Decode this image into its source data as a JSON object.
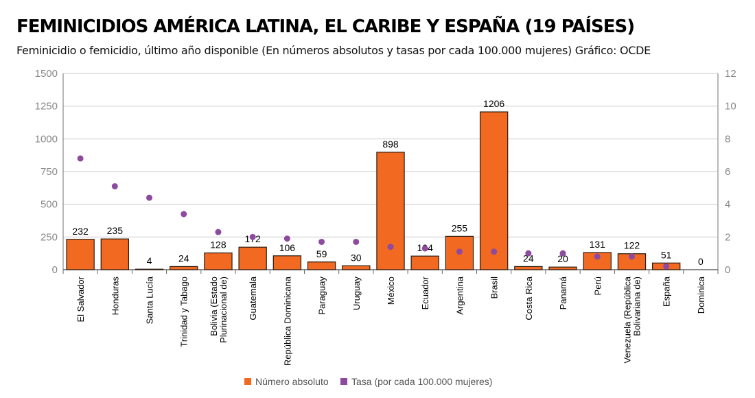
{
  "header": {
    "title": "FEMINICIDIOS AMÉRICA LATINA, EL CARIBE Y ESPAÑA (19 PAÍSES)",
    "subtitle": "Feminicidio o femicidio, último año disponible (En números absolutos y tasas por cada 100.000 mujeres) Gráfico: OCDE"
  },
  "chart_data": {
    "type": "bar",
    "title": "FEMINICIDIOS AMÉRICA LATINA, EL CARIBE Y ESPAÑA (19 PAÍSES)",
    "subtitle": "Feminicidio o femicidio, último año disponible (En números absolutos y tasas por cada 100.000 mujeres) Gráfico: OCDE",
    "categories": [
      [
        "El Salvador"
      ],
      [
        "Honduras"
      ],
      [
        "Santa Lucía"
      ],
      [
        "Trinidad y Tabago"
      ],
      [
        "Bolivia (Estado",
        "Plurinacional de)"
      ],
      [
        "Guatemala"
      ],
      [
        "República Dominicana"
      ],
      [
        "Paraguay"
      ],
      [
        "Uruguay"
      ],
      [
        "México"
      ],
      [
        "Ecuador"
      ],
      [
        "Argentina"
      ],
      [
        "Brasil"
      ],
      [
        "Costa Rica"
      ],
      [
        "Panamá"
      ],
      [
        "Perú"
      ],
      [
        "Venezuela (República",
        "Bolivariana de)"
      ],
      [
        "España"
      ],
      [
        "Dominica"
      ]
    ],
    "series": [
      {
        "name": "Número absoluto",
        "type": "bar",
        "axis": "left",
        "color": "#F26A21",
        "values": [
          232,
          235,
          4,
          24,
          128,
          172,
          106,
          59,
          30,
          898,
          104,
          255,
          1206,
          24,
          20,
          131,
          122,
          51,
          0
        ],
        "labels": [
          "232",
          "235",
          "4",
          "24",
          "128",
          "172",
          "106",
          "59",
          "30",
          "898",
          "104",
          "255",
          "1206",
          "24",
          "20",
          "131",
          "122",
          "51",
          "0"
        ]
      },
      {
        "name": "Tasa (por cada 100.000 mujeres)",
        "type": "scatter",
        "axis": "right",
        "color": "#8E4A9E",
        "values": [
          6.8,
          5.1,
          4.4,
          3.4,
          2.3,
          2.0,
          1.9,
          1.7,
          1.7,
          1.4,
          1.3,
          1.1,
          1.1,
          1.0,
          1.0,
          0.8,
          0.8,
          0.2,
          null
        ]
      }
    ],
    "y_left": {
      "min": 0,
      "max": 1500,
      "ticks": [
        "0",
        "250",
        "500",
        "750",
        "1000",
        "1250",
        "1500"
      ]
    },
    "y_right": {
      "min": 0,
      "max": 12,
      "ticks": [
        "0",
        "2",
        "4",
        "6",
        "8",
        "10",
        "12"
      ]
    },
    "grid": true,
    "legend": {
      "position": "bottom-center",
      "items": [
        {
          "label": "Número absoluto",
          "color": "#F26A21"
        },
        {
          "label": "Tasa (por cada 100.000 mujeres)",
          "color": "#8E4A9E"
        }
      ]
    }
  }
}
